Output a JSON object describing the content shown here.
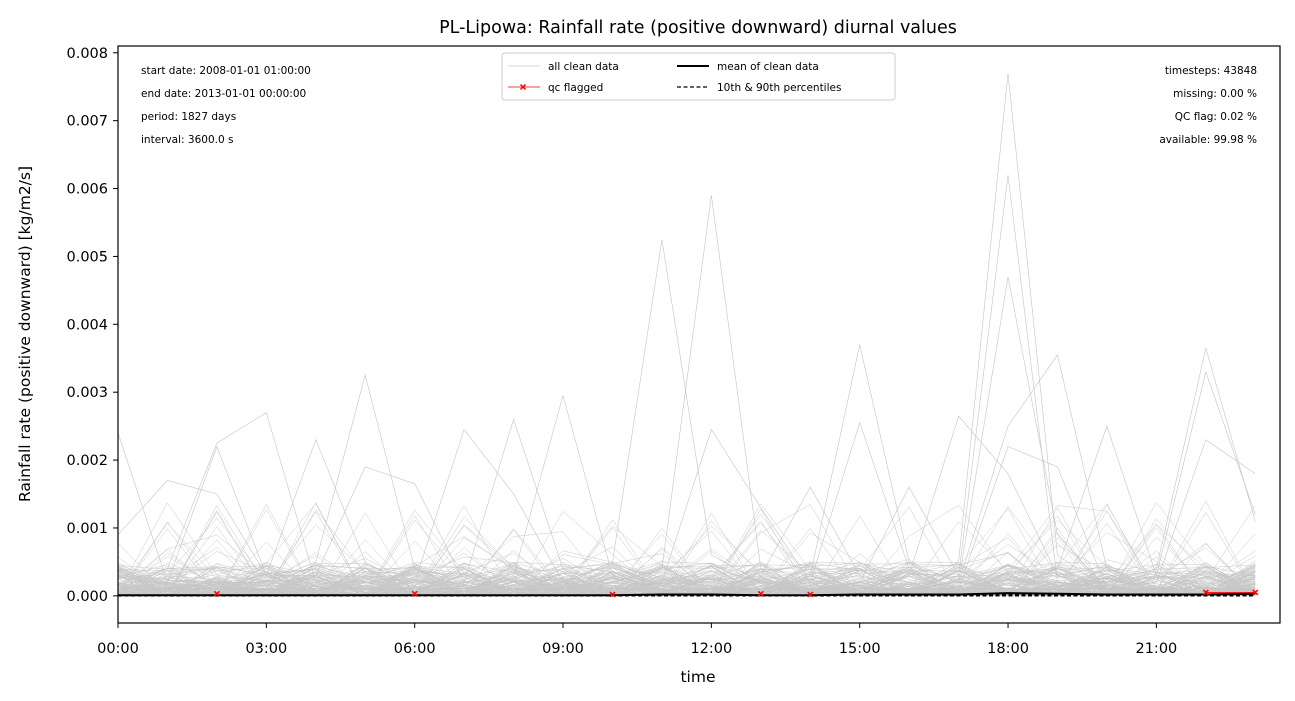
{
  "chart_data": {
    "type": "line",
    "title": "PL-Lipowa: Rainfall rate (positive downward) diurnal values",
    "xlabel": "time",
    "ylabel": "Rainfall rate (positive downward) [kg/m2/s]",
    "xlim": [
      0,
      23.5
    ],
    "ylim": [
      -0.0004,
      0.0081
    ],
    "x_ticks": [
      0,
      3,
      6,
      9,
      12,
      15,
      18,
      21
    ],
    "x_tick_labels": [
      "00:00",
      "03:00",
      "06:00",
      "09:00",
      "12:00",
      "15:00",
      "18:00",
      "21:00"
    ],
    "y_ticks": [
      0,
      0.001,
      0.002,
      0.003,
      0.004,
      0.005,
      0.006,
      0.007,
      0.008
    ],
    "y_tick_labels": [
      "0.000",
      "0.001",
      "0.002",
      "0.003",
      "0.004",
      "0.005",
      "0.006",
      "0.007",
      "0.008"
    ],
    "grid": false,
    "legend_position": "top-center",
    "legend": [
      {
        "label": "all clean data",
        "style": "thin-gray"
      },
      {
        "label": "qc flagged",
        "style": "red-x"
      },
      {
        "label": "mean of clean data",
        "style": "black-solid"
      },
      {
        "label": "10th & 90th percentiles",
        "style": "black-dashed"
      }
    ],
    "info_left": [
      "start date: 2008-01-01 01:00:00",
      "end date: 2013-01-01 00:00:00",
      "period: 1827 days",
      "interval: 3600.0 s"
    ],
    "info_right": [
      "timesteps: 43848",
      "missing: 0.00 %",
      "QC flag: 0.02 %",
      "available: 99.98 %"
    ],
    "hours": [
      0,
      1,
      2,
      3,
      4,
      5,
      6,
      7,
      8,
      9,
      10,
      11,
      12,
      13,
      14,
      15,
      16,
      17,
      18,
      19,
      20,
      21,
      22,
      23
    ],
    "mean_series": [
      1e-05,
      1e-05,
      1e-05,
      1e-05,
      1e-05,
      1e-05,
      1e-05,
      1e-05,
      1e-05,
      1e-05,
      1e-05,
      2e-05,
      2e-05,
      1e-05,
      1e-05,
      2e-05,
      2e-05,
      2e-05,
      4e-05,
      3e-05,
      2e-05,
      2e-05,
      2e-05,
      3e-05
    ],
    "p10_series": [
      0,
      0,
      0,
      0,
      0,
      0,
      0,
      0,
      0,
      0,
      0,
      0,
      0,
      0,
      0,
      0,
      0,
      0,
      0,
      0,
      0,
      0,
      0,
      0
    ],
    "p90_series": [
      1e-05,
      1e-05,
      1e-05,
      1e-05,
      1e-05,
      1e-05,
      1e-05,
      1e-05,
      1e-05,
      1e-05,
      1e-05,
      1e-05,
      1e-05,
      1e-05,
      1e-05,
      1e-05,
      1e-05,
      1e-05,
      2e-05,
      1e-05,
      1e-05,
      1e-05,
      1e-05,
      1e-05
    ],
    "qc_flagged_points": [
      {
        "x": 2,
        "y": 3e-05
      },
      {
        "x": 6,
        "y": 3e-05
      },
      {
        "x": 10,
        "y": 2e-05
      },
      {
        "x": 13,
        "y": 3e-05
      },
      {
        "x": 14,
        "y": 2e-05
      },
      {
        "x": 22,
        "y": 5e-05
      },
      {
        "x": 23,
        "y": 5e-05
      }
    ],
    "peak_days": [
      [
        0.0024,
        0.0002,
        0.0001,
        0.0001,
        0.0001,
        0.0001,
        0.0001,
        0.0001,
        0.0001,
        0.0001,
        0.0001,
        0.0001,
        0.0001,
        0.0001,
        0.0001,
        0.0001,
        0.0001,
        0.0001,
        0.0001,
        0.0001,
        0.0001,
        0.0001,
        0.0001,
        0.0001
      ],
      [
        0.0009,
        0.0017,
        0.0015,
        0.0003,
        0.0001,
        0.0001,
        0.0001,
        0.0001,
        0.0001,
        0.0001,
        0.0001,
        0.0001,
        0.0001,
        0.0001,
        0.0001,
        0.0001,
        0.0001,
        0.0001,
        0.0001,
        0.0001,
        0.0001,
        0.0001,
        0.0001,
        0.0001
      ],
      [
        0.0001,
        0.0004,
        0.00225,
        0.0027,
        0.0002,
        0.0001,
        0.0001,
        0.0001,
        0.0001,
        0.0001,
        0.0001,
        0.0001,
        0.0001,
        0.0001,
        0.0001,
        0.0001,
        0.0001,
        0.0001,
        0.0001,
        0.0001,
        0.0001,
        0.0001,
        0.0001,
        0.0001
      ],
      [
        0.0001,
        0.0002,
        0.0022,
        0.0003,
        0.0023,
        0.0005,
        0.0001,
        0.0001,
        0.0001,
        0.0001,
        0.0001,
        0.0001,
        0.0001,
        0.0001,
        0.0001,
        0.0001,
        0.0001,
        0.0001,
        0.0001,
        0.0001,
        0.0001,
        0.0001,
        0.0001,
        0.0001
      ],
      [
        0.0001,
        0.0001,
        0.0002,
        0.0002,
        0.0005,
        0.00325,
        0.0004,
        0.0001,
        0.0001,
        0.0001,
        0.0001,
        0.0001,
        0.0001,
        0.0001,
        0.0001,
        0.0001,
        0.0001,
        0.0001,
        0.0001,
        0.0001,
        0.0001,
        0.0001,
        0.0001,
        0.0001
      ],
      [
        0.0001,
        0.0001,
        0.0001,
        0.0001,
        0.0003,
        0.0019,
        0.00165,
        0.0002,
        0.0001,
        0.0001,
        0.0001,
        0.0001,
        0.0001,
        0.0001,
        0.0001,
        0.0001,
        0.0001,
        0.0001,
        0.0001,
        0.0001,
        0.0001,
        0.0001,
        0.0001,
        0.0001
      ],
      [
        0.0001,
        0.0001,
        0.0001,
        0.0001,
        0.0001,
        0.0001,
        0.0002,
        0.00245,
        0.0015,
        0.0002,
        0.0001,
        0.0001,
        0.0001,
        0.0001,
        0.0001,
        0.0001,
        0.0001,
        0.0001,
        0.0001,
        0.0001,
        0.0001,
        0.0001,
        0.0001,
        0.0001
      ],
      [
        0.0001,
        0.0001,
        0.0001,
        0.0001,
        0.0001,
        0.0001,
        0.0001,
        0.0002,
        0.0026,
        0.0004,
        0.0001,
        0.0001,
        0.0001,
        0.0001,
        0.0001,
        0.0001,
        0.0001,
        0.0001,
        0.0001,
        0.0001,
        0.0001,
        0.0001,
        0.0001,
        0.0001
      ],
      [
        0.0001,
        0.0001,
        0.0001,
        0.0001,
        0.0001,
        0.0001,
        0.0001,
        0.0001,
        0.0003,
        0.00295,
        0.0003,
        0.0001,
        0.0001,
        0.0001,
        0.0001,
        0.0001,
        0.0001,
        0.0001,
        0.0001,
        0.0001,
        0.0001,
        0.0001,
        0.0001,
        0.0001
      ],
      [
        0.0001,
        0.0001,
        0.0001,
        0.0001,
        0.0001,
        0.0001,
        0.0001,
        0.0001,
        0.0001,
        0.0002,
        0.0005,
        0.00525,
        0.0006,
        0.0002,
        0.0001,
        0.0001,
        0.0001,
        0.0001,
        0.0001,
        0.0001,
        0.0001,
        0.0001,
        0.0001,
        0.0001
      ],
      [
        0.0001,
        0.0001,
        0.0001,
        0.0001,
        0.0001,
        0.0001,
        0.0001,
        0.0001,
        0.0001,
        0.0001,
        0.0002,
        0.0004,
        0.0059,
        0.0004,
        0.0001,
        0.0001,
        0.0001,
        0.0001,
        0.0001,
        0.0001,
        0.0001,
        0.0001,
        0.0001,
        0.0001
      ],
      [
        0.0001,
        0.0001,
        0.0001,
        0.0001,
        0.0001,
        0.0001,
        0.0001,
        0.0001,
        0.0001,
        0.0001,
        0.0001,
        0.0002,
        0.00245,
        0.0013,
        0.0002,
        0.0001,
        0.0001,
        0.0001,
        0.0001,
        0.0001,
        0.0001,
        0.0001,
        0.0001,
        0.0001
      ],
      [
        0.0001,
        0.0001,
        0.0001,
        0.0001,
        0.0001,
        0.0001,
        0.0001,
        0.0001,
        0.0001,
        0.0001,
        0.0001,
        0.0001,
        0.0001,
        0.0003,
        0.0016,
        0.0003,
        0.0001,
        0.0001,
        0.0001,
        0.0001,
        0.0001,
        0.0001,
        0.0001,
        0.0001
      ],
      [
        0.0001,
        0.0001,
        0.0001,
        0.0001,
        0.0001,
        0.0001,
        0.0001,
        0.0001,
        0.0001,
        0.0001,
        0.0001,
        0.0001,
        0.0001,
        0.0001,
        0.0003,
        0.0037,
        0.0005,
        0.0002,
        0.0001,
        0.0001,
        0.0001,
        0.0001,
        0.0001,
        0.0001
      ],
      [
        0.0001,
        0.0001,
        0.0001,
        0.0001,
        0.0001,
        0.0001,
        0.0001,
        0.0001,
        0.0001,
        0.0001,
        0.0001,
        0.0001,
        0.0001,
        0.0001,
        0.0002,
        0.00255,
        0.0004,
        0.0001,
        0.0001,
        0.0001,
        0.0001,
        0.0001,
        0.0001,
        0.0001
      ],
      [
        0.0001,
        0.0001,
        0.0001,
        0.0001,
        0.0001,
        0.0001,
        0.0001,
        0.0001,
        0.0001,
        0.0001,
        0.0001,
        0.0001,
        0.0001,
        0.0001,
        0.0001,
        0.0002,
        0.0016,
        0.0003,
        0.0001,
        0.0001,
        0.0001,
        0.0001,
        0.0001,
        0.0001
      ],
      [
        0.0001,
        0.0001,
        0.0001,
        0.0001,
        0.0001,
        0.0001,
        0.0001,
        0.0001,
        0.0001,
        0.0001,
        0.0001,
        0.0001,
        0.0001,
        0.0001,
        0.0001,
        0.0001,
        0.0003,
        0.00265,
        0.0018,
        0.0003,
        0.0001,
        0.0001,
        0.0001,
        0.0001
      ],
      [
        0.0001,
        0.0001,
        0.0001,
        0.0001,
        0.0001,
        0.0001,
        0.0001,
        0.0001,
        0.0001,
        0.0001,
        0.0001,
        0.0001,
        0.0001,
        0.0001,
        0.0001,
        0.0001,
        0.0001,
        0.0005,
        0.0077,
        0.0006,
        0.0001,
        0.0001,
        0.0001,
        0.0001
      ],
      [
        0.0001,
        0.0001,
        0.0001,
        0.0001,
        0.0001,
        0.0001,
        0.0001,
        0.0001,
        0.0001,
        0.0001,
        0.0001,
        0.0001,
        0.0001,
        0.0001,
        0.0001,
        0.0001,
        0.0001,
        0.0003,
        0.0062,
        0.0002,
        0.0001,
        0.0001,
        0.0001,
        0.0001
      ],
      [
        0.0001,
        0.0001,
        0.0001,
        0.0001,
        0.0001,
        0.0001,
        0.0001,
        0.0001,
        0.0001,
        0.0001,
        0.0001,
        0.0001,
        0.0001,
        0.0001,
        0.0001,
        0.0001,
        0.0001,
        0.0002,
        0.0047,
        0.0009,
        0.0001,
        0.0001,
        0.0001,
        0.0001
      ],
      [
        0.0001,
        0.0001,
        0.0001,
        0.0001,
        0.0001,
        0.0001,
        0.0001,
        0.0001,
        0.0001,
        0.0001,
        0.0001,
        0.0001,
        0.0001,
        0.0001,
        0.0001,
        0.0001,
        0.0001,
        0.0002,
        0.0025,
        0.00355,
        0.0004,
        0.0001,
        0.0001,
        0.0001
      ],
      [
        0.0001,
        0.0001,
        0.0001,
        0.0001,
        0.0001,
        0.0001,
        0.0001,
        0.0001,
        0.0001,
        0.0001,
        0.0001,
        0.0001,
        0.0001,
        0.0001,
        0.0001,
        0.0001,
        0.0001,
        0.0001,
        0.0022,
        0.0019,
        0.0001,
        0.0001,
        0.0001,
        0.0001
      ],
      [
        0.0001,
        0.0001,
        0.0001,
        0.0001,
        0.0001,
        0.0001,
        0.0001,
        0.0001,
        0.0001,
        0.0001,
        0.0001,
        0.0001,
        0.0001,
        0.0001,
        0.0001,
        0.0001,
        0.0001,
        0.0001,
        0.0001,
        0.0004,
        0.0025,
        0.0003,
        0.0001,
        0.0001
      ],
      [
        0.0001,
        0.0001,
        0.0001,
        0.0001,
        0.0001,
        0.0001,
        0.0001,
        0.0001,
        0.0001,
        0.0001,
        0.0001,
        0.0001,
        0.0001,
        0.0001,
        0.0001,
        0.0001,
        0.0001,
        0.0001,
        0.0001,
        0.0001,
        0.0002,
        0.0004,
        0.00365,
        0.0011
      ],
      [
        0.0001,
        0.0001,
        0.0001,
        0.0001,
        0.0001,
        0.0001,
        0.0001,
        0.0001,
        0.0001,
        0.0001,
        0.0001,
        0.0001,
        0.0001,
        0.0001,
        0.0001,
        0.0001,
        0.0001,
        0.0001,
        0.0001,
        0.0001,
        0.0001,
        0.0003,
        0.0033,
        0.0012
      ],
      [
        0.0001,
        0.0001,
        0.0001,
        0.0001,
        0.0001,
        0.0001,
        0.0001,
        0.0001,
        0.0001,
        0.0001,
        0.0001,
        0.0001,
        0.0001,
        0.0001,
        0.0001,
        0.0001,
        0.0001,
        0.0001,
        0.0001,
        0.0001,
        0.0001,
        0.0002,
        0.0023,
        0.0018
      ]
    ]
  }
}
